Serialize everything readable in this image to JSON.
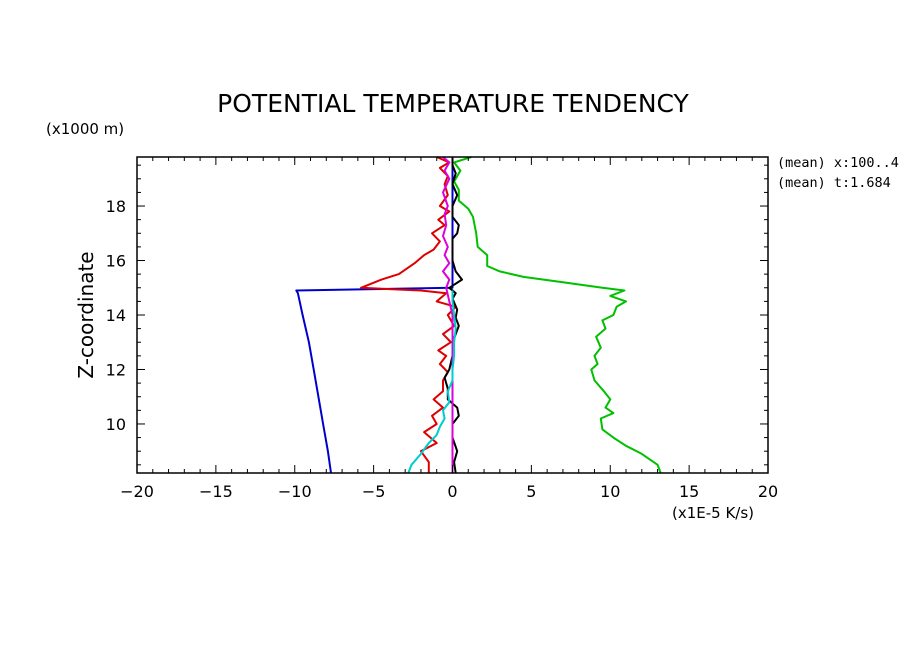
{
  "chart_data": {
    "type": "line",
    "title": "POTENTIAL TEMPERATURE TENDENCY",
    "xlabel": "(x1E-5 K/s)",
    "ylabel": "Z-coordinate",
    "yunit": "(x1000 m)",
    "notes": [
      "(mean) x:100..4",
      "(mean) t:1.684"
    ],
    "xlim": [
      -20,
      20
    ],
    "ylim": [
      8.2,
      19.8
    ],
    "xticks": [
      -20,
      -15,
      -10,
      -5,
      0,
      5,
      10,
      15,
      20
    ],
    "xtick_labels": [
      "−20",
      "−15",
      "−10",
      "−5",
      "0",
      "5",
      "10",
      "15",
      "20"
    ],
    "yticks": [
      10,
      12,
      14,
      16,
      18
    ],
    "ytick_labels": [
      "10",
      "12",
      "14",
      "16",
      "18"
    ],
    "grid": false,
    "series": [
      {
        "color": "#0000cc",
        "points": [
          [
            -7.7,
            8.2
          ],
          [
            -7.9,
            9.0
          ],
          [
            -8.2,
            10.0
          ],
          [
            -8.5,
            11.0
          ],
          [
            -8.8,
            12.0
          ],
          [
            -9.1,
            13.0
          ],
          [
            -9.5,
            14.0
          ],
          [
            -9.8,
            14.8
          ],
          [
            -9.9,
            14.9
          ],
          [
            -5.0,
            14.95
          ],
          [
            0.0,
            15.0
          ],
          [
            0.0,
            16.0
          ],
          [
            0.0,
            17.0
          ],
          [
            0.0,
            18.0
          ],
          [
            0.0,
            19.0
          ],
          [
            0.0,
            19.8
          ]
        ]
      },
      {
        "color": "#00c000",
        "points": [
          [
            13.2,
            8.2
          ],
          [
            13.0,
            8.5
          ],
          [
            12.0,
            8.9
          ],
          [
            11.0,
            9.2
          ],
          [
            10.2,
            9.5
          ],
          [
            9.5,
            9.8
          ],
          [
            9.4,
            10.2
          ],
          [
            10.2,
            10.4
          ],
          [
            9.7,
            10.6
          ],
          [
            10.0,
            10.9
          ],
          [
            9.6,
            11.2
          ],
          [
            9.0,
            11.6
          ],
          [
            8.8,
            12.0
          ],
          [
            9.2,
            12.2
          ],
          [
            9.0,
            12.5
          ],
          [
            9.4,
            12.8
          ],
          [
            9.1,
            13.2
          ],
          [
            9.7,
            13.5
          ],
          [
            9.5,
            13.8
          ],
          [
            10.2,
            14.0
          ],
          [
            10.4,
            14.3
          ],
          [
            11.0,
            14.5
          ],
          [
            10.0,
            14.7
          ],
          [
            10.9,
            14.9
          ],
          [
            9.5,
            15.0
          ],
          [
            7.0,
            15.2
          ],
          [
            4.5,
            15.4
          ],
          [
            3.0,
            15.6
          ],
          [
            2.2,
            15.8
          ],
          [
            2.2,
            16.2
          ],
          [
            1.6,
            16.5
          ],
          [
            1.5,
            17.0
          ],
          [
            1.3,
            17.6
          ],
          [
            1.0,
            17.9
          ],
          [
            0.4,
            18.2
          ],
          [
            0.4,
            18.6
          ],
          [
            0.1,
            18.9
          ],
          [
            0.5,
            19.3
          ],
          [
            0.1,
            19.6
          ],
          [
            1.2,
            19.8
          ]
        ]
      },
      {
        "color": "#dd0000",
        "points": [
          [
            -1.5,
            8.2
          ],
          [
            -1.5,
            8.6
          ],
          [
            -2.0,
            9.0
          ],
          [
            -1.0,
            9.3
          ],
          [
            -1.8,
            9.7
          ],
          [
            -1.0,
            10.0
          ],
          [
            -1.3,
            10.3
          ],
          [
            -0.6,
            10.6
          ],
          [
            -1.2,
            10.9
          ],
          [
            -0.6,
            11.2
          ],
          [
            -0.6,
            11.6
          ],
          [
            -0.3,
            11.9
          ],
          [
            -0.8,
            12.2
          ],
          [
            -0.4,
            12.5
          ],
          [
            -0.9,
            12.7
          ],
          [
            -0.1,
            13.0
          ],
          [
            -0.6,
            13.3
          ],
          [
            0.1,
            13.6
          ],
          [
            -0.3,
            14.0
          ],
          [
            0.2,
            14.3
          ],
          [
            -1.0,
            14.5
          ],
          [
            -0.4,
            14.8
          ],
          [
            -2.0,
            14.9
          ],
          [
            -5.8,
            15.0
          ],
          [
            -4.5,
            15.3
          ],
          [
            -3.4,
            15.5
          ],
          [
            -2.4,
            15.9
          ],
          [
            -1.8,
            16.2
          ],
          [
            -1.2,
            16.4
          ],
          [
            -0.8,
            16.7
          ],
          [
            -1.3,
            17.0
          ],
          [
            -0.5,
            17.3
          ],
          [
            -0.9,
            17.5
          ],
          [
            -0.2,
            17.8
          ],
          [
            -0.8,
            18.0
          ],
          [
            -0.3,
            18.4
          ],
          [
            -0.5,
            18.8
          ],
          [
            -0.3,
            19.1
          ],
          [
            -0.8,
            19.4
          ],
          [
            -0.2,
            19.6
          ],
          [
            -1.0,
            19.8
          ]
        ]
      },
      {
        "color": "#000000",
        "points": [
          [
            0.2,
            8.2
          ],
          [
            0.1,
            8.6
          ],
          [
            0.3,
            9.0
          ],
          [
            0.0,
            9.5
          ],
          [
            0.0,
            10.0
          ],
          [
            0.4,
            10.3
          ],
          [
            0.3,
            10.6
          ],
          [
            -0.3,
            10.9
          ],
          [
            -0.3,
            11.3
          ],
          [
            -0.5,
            11.7
          ],
          [
            -0.2,
            12.0
          ],
          [
            0.0,
            12.5
          ],
          [
            0.0,
            13.0
          ],
          [
            0.2,
            13.3
          ],
          [
            0.4,
            13.6
          ],
          [
            0.2,
            13.9
          ],
          [
            0.3,
            14.2
          ],
          [
            0.0,
            14.6
          ],
          [
            0.2,
            14.8
          ],
          [
            -0.2,
            15.0
          ],
          [
            0.6,
            15.3
          ],
          [
            0.2,
            15.6
          ],
          [
            0.0,
            16.0
          ],
          [
            0.0,
            16.5
          ],
          [
            0.0,
            16.8
          ],
          [
            0.3,
            17.0
          ],
          [
            0.4,
            17.3
          ],
          [
            0.0,
            17.6
          ],
          [
            0.0,
            18.0
          ],
          [
            0.3,
            18.4
          ],
          [
            0.0,
            18.8
          ],
          [
            0.2,
            19.2
          ],
          [
            0.0,
            19.5
          ],
          [
            0.0,
            19.8
          ]
        ]
      },
      {
        "color": "#dd00dd",
        "points": [
          [
            0.0,
            8.2
          ],
          [
            0.0,
            9.0
          ],
          [
            0.0,
            10.0
          ],
          [
            0.0,
            11.0
          ],
          [
            0.0,
            12.0
          ],
          [
            0.0,
            13.0
          ],
          [
            0.0,
            14.0
          ],
          [
            -0.2,
            14.5
          ],
          [
            -0.4,
            15.0
          ],
          [
            -0.2,
            15.3
          ],
          [
            -0.6,
            15.6
          ],
          [
            -0.2,
            15.9
          ],
          [
            -0.5,
            16.2
          ],
          [
            -0.3,
            16.5
          ],
          [
            -0.6,
            16.9
          ],
          [
            -0.4,
            17.3
          ],
          [
            -0.5,
            17.7
          ],
          [
            -0.3,
            18.0
          ],
          [
            -0.6,
            18.5
          ],
          [
            -0.2,
            19.0
          ],
          [
            -0.5,
            19.3
          ],
          [
            -0.2,
            19.6
          ],
          [
            -0.6,
            19.8
          ]
        ]
      },
      {
        "color": "#00cccc",
        "points": [
          [
            -2.8,
            8.2
          ],
          [
            -2.6,
            8.5
          ],
          [
            -2.0,
            8.9
          ],
          [
            -1.5,
            9.3
          ],
          [
            -1.0,
            9.6
          ],
          [
            -0.8,
            9.9
          ],
          [
            -0.5,
            10.2
          ],
          [
            -0.6,
            10.5
          ],
          [
            -0.2,
            10.8
          ],
          [
            -0.3,
            11.2
          ],
          [
            0.0,
            11.6
          ],
          [
            0.0,
            12.0
          ],
          [
            0.1,
            12.5
          ],
          [
            0.1,
            13.0
          ],
          [
            0.2,
            13.5
          ],
          [
            0.1,
            14.0
          ],
          [
            0.0,
            14.5
          ],
          [
            0.0,
            14.9
          ]
        ]
      }
    ]
  }
}
